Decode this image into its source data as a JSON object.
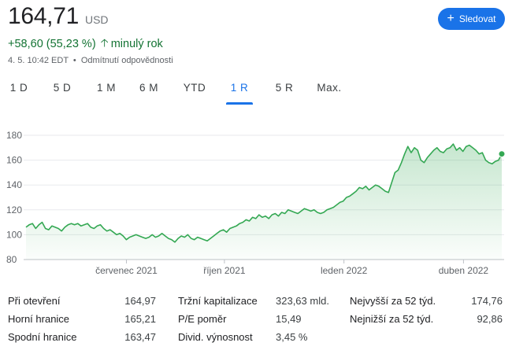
{
  "quote": {
    "price": "164,71",
    "currency": "USD",
    "change": "+58,60 (55,23 %)",
    "change_period": "minulý rok",
    "timestamp": "4. 5. 10:42 EDT",
    "disclaimer": "Odmítnutí odpovědnosti",
    "accent_color": "#1a73e8",
    "positive_color": "#137333"
  },
  "follow_button": {
    "label": "Sledovat"
  },
  "tabs": [
    {
      "label": "1 D",
      "active": false
    },
    {
      "label": "5 D",
      "active": false
    },
    {
      "label": "1 M",
      "active": false
    },
    {
      "label": "6 M",
      "active": false
    },
    {
      "label": "YTD",
      "active": false
    },
    {
      "label": "1 R",
      "active": true
    },
    {
      "label": "5 R",
      "active": false
    },
    {
      "label": "Max.",
      "active": false
    }
  ],
  "chart_data": {
    "type": "area",
    "title": "",
    "xlabel": "",
    "ylabel": "",
    "ylim": [
      80,
      180
    ],
    "yticks": [
      80,
      100,
      120,
      140,
      160,
      180
    ],
    "x_tick_labels": [
      "červenec 2021",
      "říjen 2021",
      "leden 2022",
      "duben 2022"
    ],
    "line_color": "#34a853",
    "grid": true,
    "series": [
      {
        "values": [
          106,
          108,
          109,
          105,
          108,
          110,
          105,
          104,
          107,
          106,
          105,
          103,
          106,
          108,
          109,
          108,
          109,
          107,
          108,
          109,
          106,
          105,
          107,
          108,
          105,
          103,
          104,
          102,
          100,
          101,
          99,
          96,
          98,
          99,
          100,
          99,
          98,
          97,
          98,
          100,
          98,
          99,
          101,
          99,
          97,
          96,
          94,
          97,
          99,
          98,
          100,
          97,
          96,
          98,
          97,
          96,
          95,
          97,
          99,
          101,
          103,
          104,
          102,
          105,
          106,
          107,
          109,
          110,
          112,
          111,
          114,
          113,
          116,
          114,
          115,
          113,
          116,
          117,
          115,
          118,
          117,
          120,
          119,
          118,
          117,
          119,
          121,
          120,
          119,
          120,
          118,
          117,
          118,
          120,
          121,
          122,
          124,
          126,
          127,
          130,
          131,
          133,
          135,
          138,
          137,
          139,
          136,
          138,
          140,
          139,
          137,
          135,
          134,
          142,
          150,
          152,
          158,
          165,
          171,
          166,
          170,
          168,
          160,
          158,
          162,
          165,
          168,
          170,
          167,
          166,
          169,
          170,
          173,
          168,
          170,
          167,
          171,
          172,
          170,
          168,
          165,
          166,
          160,
          158,
          157,
          159,
          160,
          165
        ]
      }
    ]
  },
  "stats": [
    {
      "label": "Při otevření",
      "value": "164,97"
    },
    {
      "label": "Horní hranice",
      "value": "165,21"
    },
    {
      "label": "Spodní hranice",
      "value": "163,47"
    },
    {
      "label": "Tržní kapitalizace",
      "value": "323,63 mld."
    },
    {
      "label": "P/E poměr",
      "value": "15,49"
    },
    {
      "label": "Divid. výnosnost",
      "value": "3,45 %"
    },
    {
      "label": "Nejvyšší za 52 týd.",
      "value": "174,76"
    },
    {
      "label": "Nejnižší za 52 týd.",
      "value": "92,86"
    }
  ]
}
